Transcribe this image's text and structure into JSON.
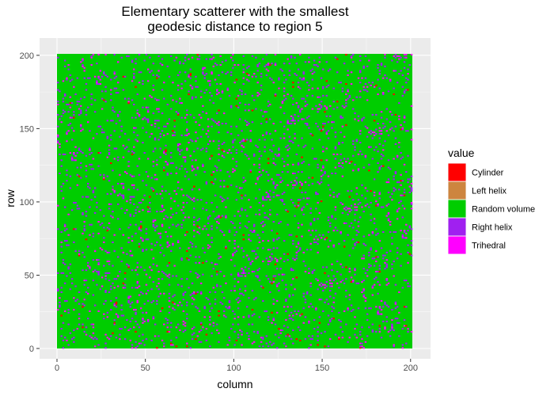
{
  "chart_data": {
    "type": "heatmap",
    "title_line1": "Elementary scatterer with the smallest",
    "title_line2": "geodesic distance to region 5",
    "xlabel": "column",
    "ylabel": "row",
    "xlim": [
      0,
      201
    ],
    "ylim": [
      0,
      201
    ],
    "x_ticks": [
      "0",
      "50",
      "100",
      "150",
      "200"
    ],
    "y_ticks": [
      "0",
      "50",
      "100",
      "150",
      "200"
    ],
    "grid": true,
    "legend_position": "right",
    "legend": {
      "title": "value",
      "entries": [
        {
          "label": "Cylinder",
          "color": "#ff0000"
        },
        {
          "label": "Left helix",
          "color": "#cd853f"
        },
        {
          "label": "Random volume",
          "color": "#00cd00"
        },
        {
          "label": "Right helix",
          "color": "#a020f0"
        },
        {
          "label": "Trihedral",
          "color": "#ff00ff"
        }
      ]
    },
    "base_value": "Random volume",
    "approx_cell_fraction": {
      "Random volume": 0.93,
      "Right helix": 0.045,
      "Trihedral": 0.02,
      "Cylinder": 0.005,
      "Left helix": 0.0
    }
  }
}
